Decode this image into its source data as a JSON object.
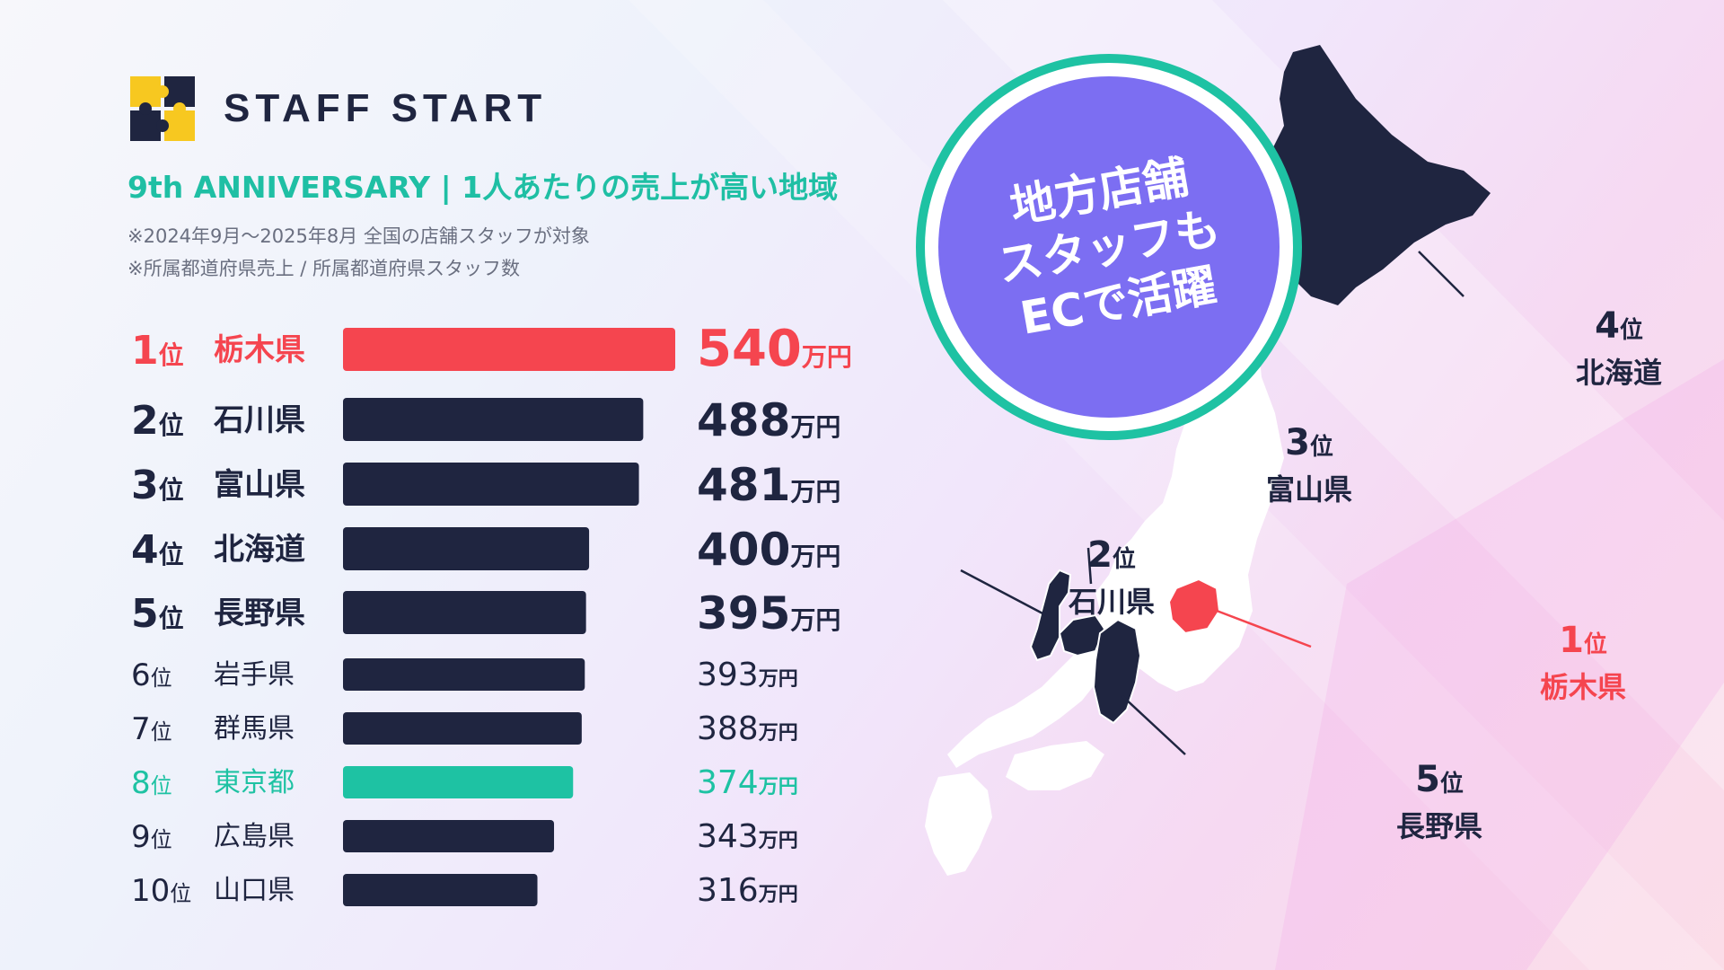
{
  "brand": {
    "name": "STAFF START",
    "logo_icon": "puzzle-logo-icon"
  },
  "header": {
    "subtitle": "9th ANNIVERSARY | 1人あたりの売上が高い地域",
    "note1": "※2024年9月〜2025年8月 全国の店舗スタッフが対象",
    "note2": "※所属都道府県売上 / 所属都道府県スタッフ数"
  },
  "badge": {
    "text": "地方店舗\nスタッフも\nECで活躍"
  },
  "colors": {
    "highlight": "#f5454f",
    "default_bar": "#1f2540",
    "accent": "#1ec2a3",
    "badge": "#7c6ef2"
  },
  "map_labels": [
    {
      "key": "hokkaido",
      "rank": "4",
      "suffix": "位",
      "pref": "北海道",
      "color": "dark"
    },
    {
      "key": "toyama",
      "rank": "3",
      "suffix": "位",
      "pref": "富山県",
      "color": "dark"
    },
    {
      "key": "ishikawa",
      "rank": "2",
      "suffix": "位",
      "pref": "石川県",
      "color": "dark"
    },
    {
      "key": "tochigi",
      "rank": "1",
      "suffix": "位",
      "pref": "栃木県",
      "color": "red"
    },
    {
      "key": "nagano",
      "rank": "5",
      "suffix": "位",
      "pref": "長野県",
      "color": "dark"
    }
  ],
  "chart_data": {
    "type": "bar",
    "orientation": "horizontal",
    "rank_suffix": "位",
    "unit": "万円",
    "categories": [
      "栃木県",
      "石川県",
      "富山県",
      "北海道",
      "長野県",
      "岩手県",
      "群馬県",
      "東京都",
      "広島県",
      "山口県"
    ],
    "ranks": [
      1,
      2,
      3,
      4,
      5,
      6,
      7,
      8,
      9,
      10
    ],
    "values": [
      540,
      488,
      481,
      400,
      395,
      393,
      388,
      374,
      343,
      316
    ],
    "bar_colors": [
      "#f5454f",
      "#1f2540",
      "#1f2540",
      "#1f2540",
      "#1f2540",
      "#1f2540",
      "#1f2540",
      "#1ec2a3",
      "#1f2540",
      "#1f2540"
    ],
    "label_colors": [
      "#f5454f",
      "#1f2540",
      "#1f2540",
      "#1f2540",
      "#1f2540",
      "#1f2540",
      "#1f2540",
      "#1ec2a3",
      "#1f2540",
      "#1f2540"
    ]
  }
}
